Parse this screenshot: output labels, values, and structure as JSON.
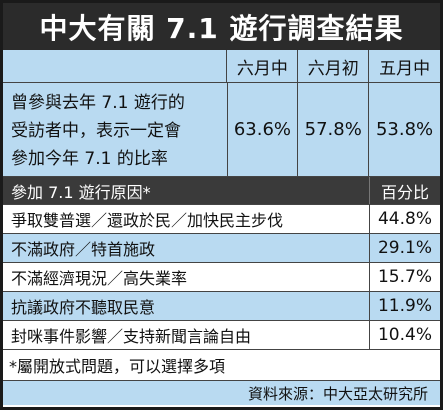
{
  "title": "中大有關 7.1 遊行調查結果",
  "header": {
    "cols": [
      "六月中",
      "六月初",
      "五月中"
    ]
  },
  "main": {
    "question_lines": [
      "曾參與去年 7.1 遊行的",
      "受訪者中，表示一定會",
      "參加今年 7.1 的比率"
    ],
    "values": [
      "63.6%",
      "57.8%",
      "53.8%"
    ]
  },
  "reasons": {
    "header_left": "參加 7.1 遊行原因*",
    "header_right": "百分比",
    "rows": [
      {
        "label": "爭取雙普選／還政於民／加快民主步伐",
        "value": "44.8%"
      },
      {
        "label": "不滿政府／特首施政",
        "value": "29.1%"
      },
      {
        "label": "不滿經濟現況／高失業率",
        "value": "15.7%"
      },
      {
        "label": "抗議政府不聽取民意",
        "value": "11.9%"
      },
      {
        "label": "封咪事件影響／支持新聞言論自由",
        "value": "10.4%"
      }
    ]
  },
  "note": "*屬開放式問題，可以選擇多項",
  "source": "資料來源：中大亞太研究所",
  "colors": {
    "accent_blue": "#b9daf1",
    "dark": "#2b2b2b"
  }
}
